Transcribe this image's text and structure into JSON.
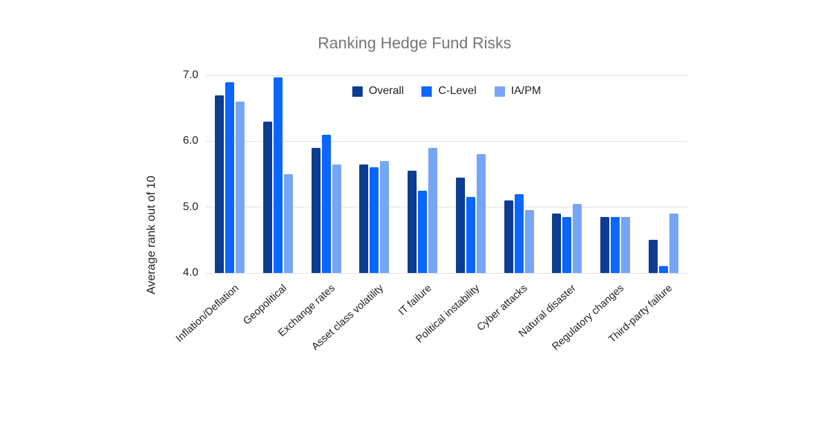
{
  "chart_data": {
    "type": "bar",
    "title": "Ranking Hedge Fund Risks",
    "ylabel": "Average rank out of 10",
    "xlabel": "",
    "ylim": [
      4.0,
      7.0
    ],
    "ytick_labels": [
      "7.0",
      "6.0",
      "5.0",
      "4.0"
    ],
    "grid": true,
    "legend_position": "top-center-inside",
    "categories": [
      "Inflation/Deflation",
      "Geopolitical",
      "Exchange rates",
      "Asset class volatility",
      "IT failure",
      "Political instability",
      "Cyber attacks",
      "Natural disaster",
      "Regulatory changes",
      "Third-party failure"
    ],
    "series": [
      {
        "name": "Overall",
        "color": "#0c3d91",
        "values": [
          6.7,
          6.3,
          5.9,
          5.65,
          5.55,
          5.45,
          5.1,
          4.9,
          4.85,
          4.5
        ]
      },
      {
        "name": "C-Level",
        "color": "#0b66fd",
        "values": [
          6.9,
          6.97,
          6.1,
          5.6,
          5.25,
          5.15,
          5.2,
          4.85,
          4.85,
          4.1
        ]
      },
      {
        "name": "IA/PM",
        "color": "#76a5f5",
        "values": [
          6.6,
          5.5,
          5.65,
          5.7,
          5.9,
          5.8,
          4.95,
          5.05,
          4.85,
          4.9
        ]
      }
    ],
    "colors": {
      "title_text": "#757575",
      "axis_text": "#212121",
      "gridline": "#e0e0e0",
      "background": "#ffffff"
    }
  }
}
